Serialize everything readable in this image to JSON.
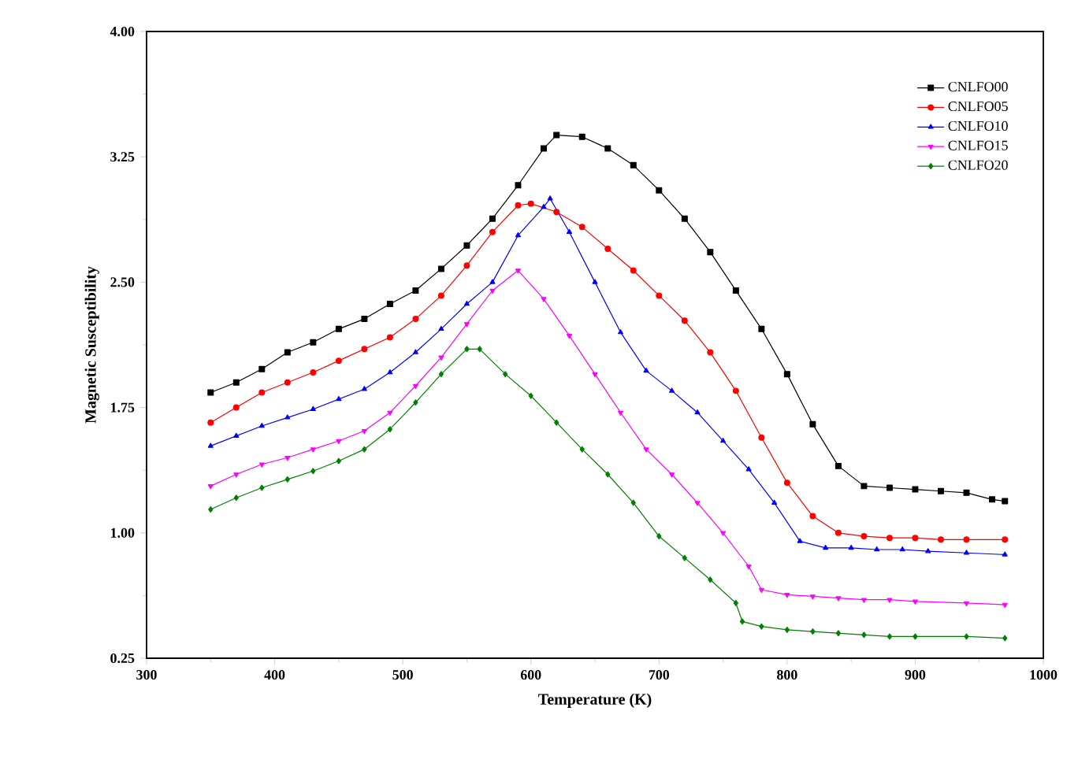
{
  "chart_data": {
    "type": "line",
    "xlabel": "Temperature (K)",
    "ylabel": "Magnetic Susceptibility",
    "xlim": [
      300,
      1000
    ],
    "xticks": [
      300,
      400,
      500,
      600,
      700,
      800,
      900,
      1000
    ],
    "ylim": [
      0.25,
      4.0
    ],
    "yticks": [
      {
        "value": 0.25,
        "label": "0.25"
      },
      {
        "value": 1.0,
        "label": "1.00"
      },
      {
        "value": 1.75,
        "label": "1.75"
      },
      {
        "value": 2.5,
        "label": "2.50"
      },
      {
        "value": 3.25,
        "label": "3.25"
      },
      {
        "value": 4.0,
        "label": "4.00"
      }
    ],
    "grid": false,
    "legend": "top right",
    "series": [
      {
        "name": "CNLFO00",
        "color": "#000000",
        "marker": "square",
        "x": [
          350,
          370,
          390,
          410,
          430,
          450,
          470,
          490,
          510,
          530,
          550,
          570,
          590,
          610,
          620,
          640,
          660,
          680,
          700,
          720,
          740,
          760,
          780,
          800,
          820,
          840,
          860,
          880,
          900,
          920,
          940,
          960,
          970
        ],
        "values": [
          1.84,
          1.9,
          1.98,
          2.08,
          2.14,
          2.22,
          2.28,
          2.37,
          2.45,
          2.58,
          2.72,
          2.88,
          3.08,
          3.3,
          3.38,
          3.37,
          3.3,
          3.2,
          3.05,
          2.88,
          2.68,
          2.45,
          2.22,
          1.95,
          1.65,
          1.4,
          1.28,
          1.27,
          1.26,
          1.25,
          1.24,
          1.2,
          1.19
        ]
      },
      {
        "name": "CNLFO05",
        "color": "#ff0000",
        "marker": "circle",
        "x": [
          350,
          370,
          390,
          410,
          430,
          450,
          470,
          490,
          510,
          530,
          550,
          570,
          590,
          600,
          620,
          640,
          660,
          680,
          700,
          720,
          740,
          760,
          780,
          800,
          820,
          840,
          860,
          880,
          900,
          920,
          940,
          970
        ],
        "values": [
          1.66,
          1.75,
          1.84,
          1.9,
          1.96,
          2.03,
          2.1,
          2.17,
          2.28,
          2.42,
          2.6,
          2.8,
          2.96,
          2.97,
          2.92,
          2.83,
          2.7,
          2.57,
          2.42,
          2.27,
          2.08,
          1.85,
          1.57,
          1.3,
          1.1,
          1.0,
          0.98,
          0.97,
          0.97,
          0.96,
          0.96,
          0.96
        ]
      },
      {
        "name": "CNLFO10",
        "color": "#0000ff",
        "marker": "triangle",
        "x": [
          350,
          370,
          390,
          410,
          430,
          450,
          470,
          490,
          510,
          530,
          550,
          570,
          590,
          610,
          615,
          630,
          650,
          670,
          690,
          710,
          730,
          750,
          770,
          790,
          810,
          830,
          850,
          870,
          890,
          910,
          940,
          970
        ],
        "values": [
          1.52,
          1.58,
          1.64,
          1.69,
          1.74,
          1.8,
          1.86,
          1.96,
          2.08,
          2.22,
          2.37,
          2.5,
          2.78,
          2.95,
          3.0,
          2.8,
          2.5,
          2.2,
          1.97,
          1.85,
          1.72,
          1.55,
          1.38,
          1.18,
          0.95,
          0.91,
          0.91,
          0.9,
          0.9,
          0.89,
          0.88,
          0.87
        ]
      },
      {
        "name": "CNLFO15",
        "color": "#ff00ff",
        "marker": "triangle-down",
        "x": [
          350,
          370,
          390,
          410,
          430,
          450,
          470,
          490,
          510,
          530,
          550,
          570,
          590,
          610,
          630,
          650,
          670,
          690,
          710,
          730,
          750,
          770,
          780,
          800,
          820,
          840,
          860,
          880,
          900,
          940,
          970
        ],
        "values": [
          1.28,
          1.35,
          1.41,
          1.45,
          1.5,
          1.55,
          1.61,
          1.72,
          1.88,
          2.05,
          2.25,
          2.45,
          2.57,
          2.4,
          2.18,
          1.95,
          1.72,
          1.5,
          1.35,
          1.18,
          1.0,
          0.8,
          0.66,
          0.63,
          0.62,
          0.61,
          0.6,
          0.6,
          0.59,
          0.58,
          0.57
        ]
      },
      {
        "name": "CNLFO20",
        "color": "#008000",
        "marker": "diamond",
        "x": [
          350,
          370,
          390,
          410,
          430,
          450,
          470,
          490,
          510,
          530,
          550,
          560,
          580,
          600,
          620,
          640,
          660,
          680,
          700,
          720,
          740,
          760,
          765,
          780,
          800,
          820,
          840,
          860,
          880,
          900,
          940,
          970
        ],
        "values": [
          1.14,
          1.21,
          1.27,
          1.32,
          1.37,
          1.43,
          1.5,
          1.62,
          1.78,
          1.95,
          2.1,
          2.1,
          1.95,
          1.82,
          1.66,
          1.5,
          1.35,
          1.18,
          0.98,
          0.85,
          0.72,
          0.58,
          0.47,
          0.44,
          0.42,
          0.41,
          0.4,
          0.39,
          0.38,
          0.38,
          0.38,
          0.37
        ]
      }
    ]
  }
}
